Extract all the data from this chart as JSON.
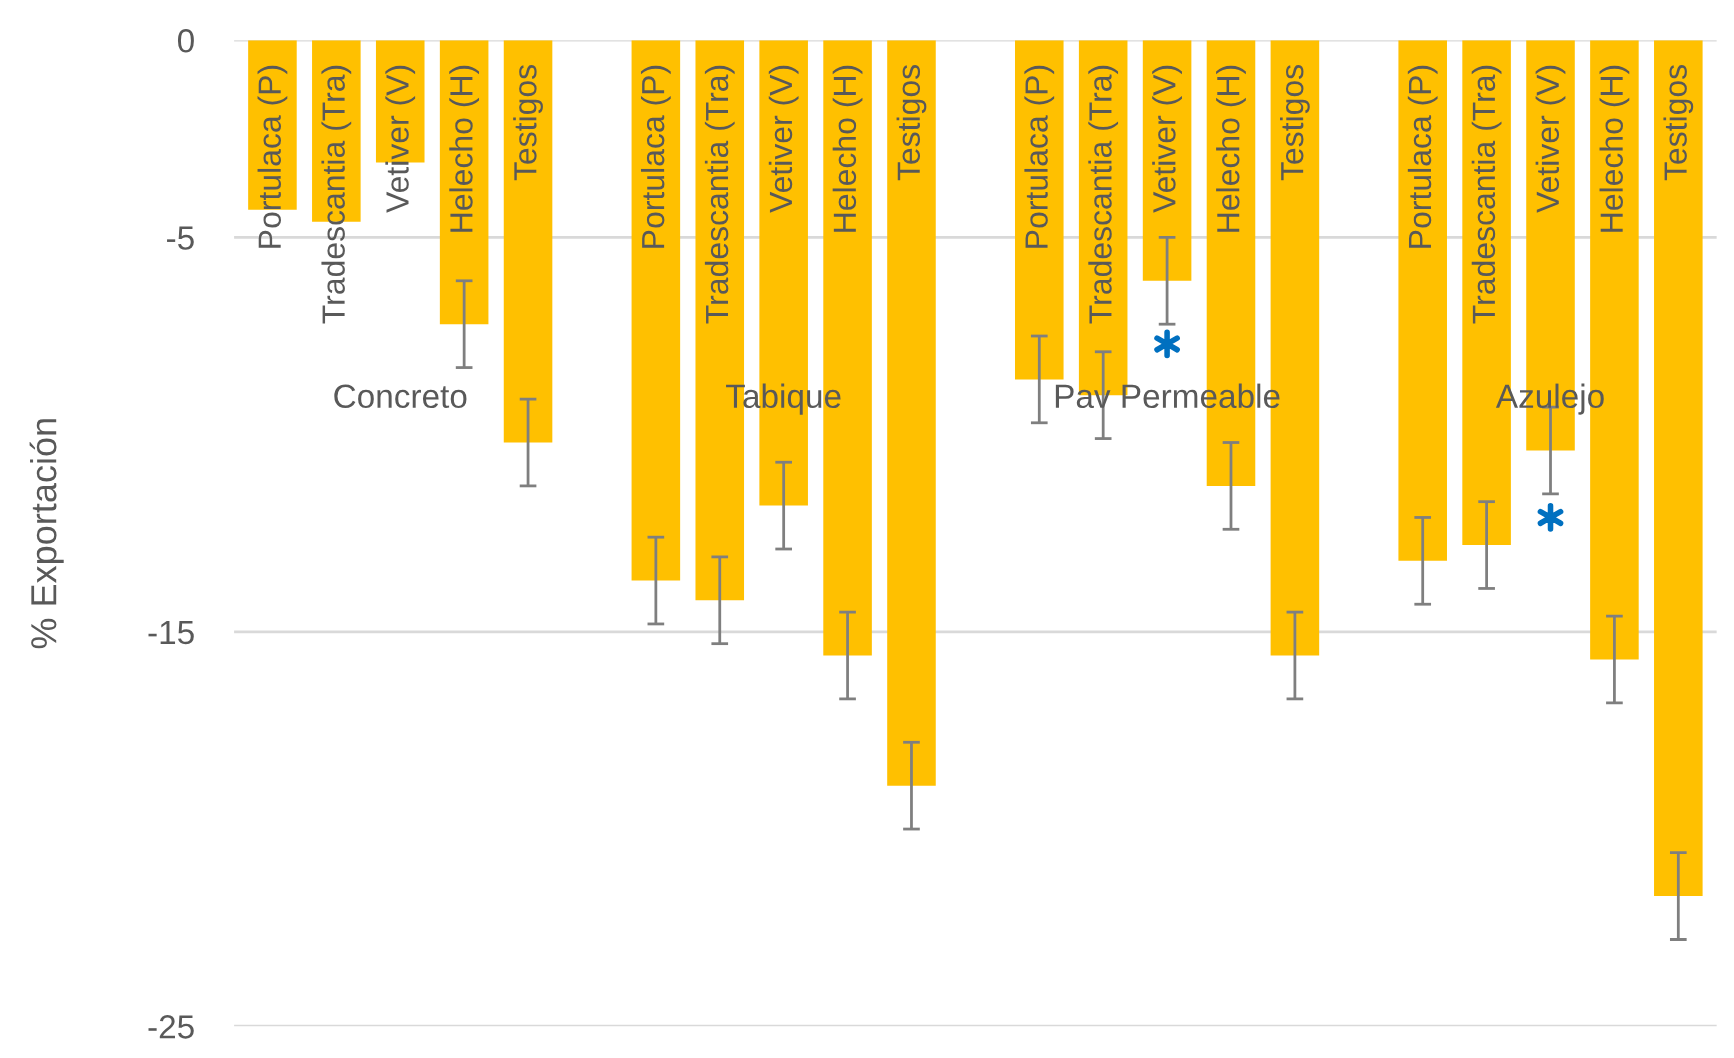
{
  "chart_data": {
    "type": "bar",
    "ylabel": "% Exportación",
    "categories": [
      "Portulaca (P)",
      "Tradescantia (Tra)",
      "Vetiver (V)",
      "Helecho (H)",
      "Testigos",
      null,
      "Portulaca (P)",
      "Tradescantia (Tra)",
      "Vetiver (V)",
      "Helecho (H)",
      "Testigos",
      null,
      "Portulaca (P)",
      "Tradescantia (Tra)",
      "Vetiver (V)",
      "Helecho (H)",
      "Testigos",
      null,
      "Portulaca (P)",
      "Tradescantia (Tra)",
      "Vetiver (V)",
      "Helecho (H)",
      "Testigos"
    ],
    "series": [
      {
        "color": "#ffc000",
        "values": [
          -4.3,
          -4.6,
          -3.1,
          -7.2,
          -10.2,
          null,
          -13.7,
          -14.2,
          -11.8,
          -15.6,
          -18.9,
          null,
          -8.6,
          -9.0,
          -6.1,
          -11.3,
          -15.6,
          null,
          -13.2,
          -12.8,
          -10.4,
          -15.7,
          -21.7
        ],
        "errors": [
          null,
          null,
          null,
          1.1,
          1.1,
          null,
          1.1,
          1.1,
          1.1,
          1.1,
          1.1,
          null,
          1.1,
          1.1,
          1.1,
          1.1,
          1.1,
          null,
          1.1,
          1.1,
          1.1,
          1.1,
          1.1
        ]
      },
      {
        "type": "scatter",
        "marker": "cross",
        "color": "#0070c0",
        "values": [
          null,
          null,
          null,
          null,
          null,
          null,
          null,
          null,
          null,
          null,
          null,
          null,
          null,
          null,
          -7.7,
          null,
          null,
          null,
          null,
          null,
          -12.1,
          null,
          null
        ]
      }
    ],
    "ylim": [
      -25,
      0
    ],
    "yticks": [
      0,
      -5,
      -15,
      -25
    ],
    "grid": "y",
    "annotations": [
      "Concreto",
      "Tabique",
      "Pav Permeable",
      "Azulejo"
    ]
  }
}
